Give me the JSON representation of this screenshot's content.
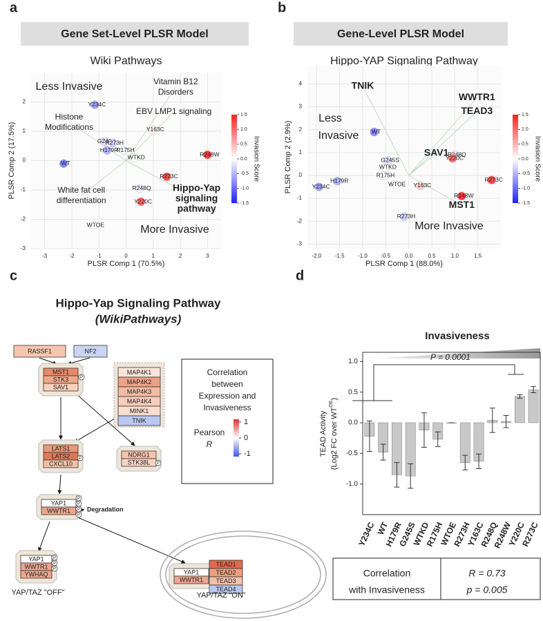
{
  "panel_letters": [
    "a",
    "b",
    "c",
    "d"
  ],
  "chart_data": [
    {
      "type": "scatter",
      "header": "Gene Set-Level PLSR Model",
      "title": "Wiki Pathways",
      "xlabel": "PLSR Comp 1 (70.5%)",
      "ylabel": "PLSR Comp 2 (17.5%)",
      "xlim": [
        -3.5,
        3.5
      ],
      "ylim": [
        -3,
        3
      ],
      "xticks": [
        -3,
        -2,
        -1,
        0,
        1,
        2,
        3
      ],
      "yticks": [
        -3,
        -2,
        -1,
        0,
        1,
        2
      ],
      "grid": true,
      "points": {
        "labels": [
          "Y234C",
          "WT",
          "G245S",
          "R273H",
          "H179R",
          "R175H",
          "WTKD",
          "Y163C",
          "R248W",
          "R273C",
          "R248Q",
          "Y220C",
          "WTOE"
        ],
        "x": [
          -1.15,
          -2.3,
          -0.8,
          -0.5,
          -0.7,
          -0.1,
          0.3,
          1.0,
          3.0,
          1.5,
          0.5,
          0.55,
          -1.2
        ],
        "y": [
          1.9,
          -0.1,
          0.65,
          0.6,
          0.35,
          0.35,
          0.1,
          1.05,
          0.2,
          -0.55,
          -0.95,
          -1.4,
          -2.2
        ],
        "invasion_score": [
          -0.6,
          -0.8,
          -0.2,
          -0.3,
          -0.5,
          -0.05,
          0,
          0.1,
          1.3,
          1.2,
          -0.1,
          1.0,
          0
        ]
      },
      "loadings": [
        {
          "label_lines": [
            "Vitamin B12",
            "Disorders"
          ],
          "x": 1.83,
          "y": 2.5,
          "color": "#2c9a2c",
          "bold": false
        },
        {
          "label_lines": [
            "EBV LMP1 signaling"
          ],
          "x": 1.76,
          "y": 1.66,
          "color": "#2c9a2c",
          "bold": false
        },
        {
          "label_lines": [
            "Histone",
            "Modifications"
          ],
          "x": -2.1,
          "y": 1.3,
          "color": "#2c9a2c",
          "bold": false
        },
        {
          "label_lines": [
            "White fat cell",
            "differentiation"
          ],
          "x": -1.65,
          "y": -1.2,
          "color": "#2c9a2c",
          "bold": false
        },
        {
          "label_lines": [
            "Hippo-Yap",
            "signaling",
            "pathway"
          ],
          "x": 2.6,
          "y": -1.3,
          "color": "#1f8a1f",
          "bold": true
        }
      ],
      "annotations": [
        {
          "text": "Less Invasive",
          "color": "#2a3ddb"
        },
        {
          "text": "More Invasive",
          "color": "#e02020"
        }
      ],
      "colorbar": {
        "label": "Invasion Score",
        "lim": [
          -1.5,
          1.5
        ],
        "colors": [
          "#2020ff",
          "#ffffff",
          "#ff2020"
        ],
        "ticks": [
          1.5,
          {
            "value": 1,
            "label": "1.0"
          },
          0.5,
          {
            "value": 0,
            "label": "0.0"
          },
          -0.5,
          {
            "value": -1,
            "label": "-1.0"
          },
          -1.5
        ]
      }
    },
    {
      "type": "scatter",
      "header": "Gene-Level PLSR Model",
      "title": "Hippo-YAP Signaling Pathway",
      "xlabel": "PLSR Comp 1 (88.0%)",
      "ylabel": "PLSR Comp 2 (2.9%)",
      "xlim": [
        -2.2,
        2.0
      ],
      "ylim": [
        -3.2,
        4.8
      ],
      "xticks": [
        {
          "value": -2,
          "label": "-2.0"
        },
        -1.5,
        {
          "value": -1,
          "label": "-1.0"
        },
        -0.5,
        {
          "value": 0,
          "label": "0.0"
        },
        0.5,
        {
          "value": 1,
          "label": "1.0"
        },
        1.5
      ],
      "yticks": [
        -3,
        -2,
        -1,
        0,
        1,
        2,
        3,
        4
      ],
      "grid": true,
      "points": {
        "labels": [
          "WT",
          "H179R",
          "Y234C",
          "G245S",
          "WTKD",
          "R175H",
          "WTOE",
          "Y163C",
          "R248Q",
          "Y220C",
          "R273C",
          "R248W",
          "R273H"
        ],
        "x": [
          -0.75,
          -1.55,
          -1.95,
          -0.45,
          -0.5,
          -0.55,
          -0.3,
          0.25,
          1.0,
          0.95,
          1.8,
          1.15,
          -0.1
        ],
        "y": [
          1.9,
          -0.25,
          -0.5,
          0.65,
          0.35,
          0.0,
          -0.4,
          -0.45,
          0.9,
          0.75,
          -0.2,
          -0.9,
          -1.8
        ],
        "invasion_score": [
          -0.8,
          -0.5,
          -0.6,
          -0.2,
          0,
          -0.05,
          0,
          0.3,
          -0.1,
          1.0,
          1.2,
          1.3,
          -0.3
        ]
      },
      "loadings": [
        {
          "label_lines": [
            "TNIK"
          ],
          "x": -1.0,
          "y": 3.9,
          "color": "#1f8a1f",
          "bold": true
        },
        {
          "label_lines": [
            "WWTR1"
          ],
          "x": 1.48,
          "y": 3.4,
          "color": "#1f8a1f",
          "bold": true
        },
        {
          "label_lines": [
            "TEAD3"
          ],
          "x": 1.48,
          "y": 2.8,
          "color": "#1f8a1f",
          "bold": true
        },
        {
          "label_lines": [
            "SAV1"
          ],
          "x": 0.6,
          "y": 0.97,
          "color": "#1f8a1f",
          "bold": true
        },
        {
          "label_lines": [
            "MST1"
          ],
          "x": 1.15,
          "y": -1.3,
          "color": "#1f8a1f",
          "bold": true
        }
      ],
      "annotations": [
        {
          "text": "Less",
          "color": "#2a3ddb"
        },
        {
          "text": "Invasive",
          "color": "#2a3ddb"
        },
        {
          "text": "More Invasive",
          "color": "#e02020"
        }
      ],
      "colorbar": {
        "label": "Invasion Score",
        "lim": [
          -1.5,
          1.5
        ],
        "colors": [
          "#2020ff",
          "#ffffff",
          "#ff2020"
        ],
        "ticks": [
          1.5,
          {
            "value": 1,
            "label": "1.0"
          },
          0.5,
          {
            "value": 0,
            "label": "0.0"
          },
          -0.5,
          {
            "value": -1,
            "label": "-1.0"
          },
          -1.5
        ]
      }
    },
    {
      "type": "bar",
      "title": "Invasiveness",
      "ylabel": "TEAD Activity",
      "ylabel2": "(Log2 FC over WT",
      "ylabel2_sup": "OE",
      "ylabel2_end": ")",
      "categories": [
        "Y234C",
        "WT",
        "H179R",
        "G245S",
        "WTKD",
        "R175H",
        "WTOE",
        "R273H",
        "Y163C",
        "R248Q",
        "R248W",
        "Y220C",
        "R273C"
      ],
      "values": [
        -0.22,
        -0.48,
        -0.85,
        -0.87,
        -0.12,
        -0.27,
        0.0,
        -0.65,
        -0.63,
        0.04,
        0.02,
        0.43,
        0.54
      ],
      "errors": [
        0.25,
        0.13,
        0.2,
        0.2,
        0.28,
        0.12,
        0.0,
        0.12,
        0.12,
        0.2,
        0.1,
        0.03,
        0.05
      ],
      "color": "#c8c8c8",
      "ylim": [
        -1.5,
        1.15
      ],
      "yticks": [
        {
          "value": -1,
          "label": "-1.0"
        },
        -0.5,
        {
          "value": 0,
          "label": "0.0"
        },
        0.5,
        {
          "value": 1,
          "label": "1.0"
        }
      ],
      "annotation": "P = 0.0001"
    }
  ],
  "pathway": {
    "title": "Hippo-Yap Signaling Pathway",
    "subtitle": "(WikiPathways)",
    "phospho_marker": "P",
    "groups": [
      {
        "genes": [
          "RASSF1"
        ],
        "colors": [
          "#f7c6ae"
        ]
      },
      {
        "genes": [
          "NF2"
        ],
        "colors": [
          "#c9d5f2"
        ]
      },
      {
        "genes": [
          "MST1",
          "STK3",
          "SAV1"
        ],
        "colors": [
          "#e8876a",
          "#f0a888",
          "#f8d0bc"
        ]
      },
      {
        "genes": [
          "MAP4K1",
          "MAP4K2",
          "MAP4K3",
          "MAP4K4",
          "MINK1",
          "TNIK"
        ],
        "colors": [
          "#f9e4da",
          "#eda185",
          "#f3bba3",
          "#f6cdb9",
          "#f9ddd0",
          "#b9c8f0"
        ]
      },
      {
        "genes": [
          "LATS1",
          "LATS2",
          "CXCL10"
        ],
        "colors": [
          "#e89878",
          "#e07858",
          "#f3c0a8"
        ]
      },
      {
        "genes": [
          "NDRG1",
          "STK38L"
        ],
        "colors": [
          "#f6c4ae",
          "#f6d4c4"
        ]
      },
      {
        "genes": [
          "YAP1",
          "WWTR1"
        ],
        "colors": [
          "#ffffff",
          "#eda590"
        ]
      },
      {
        "genes": [
          "YAP1",
          "WWTR1",
          "YWHAQ"
        ],
        "colors": [
          "#ffffff",
          "#eda590",
          "#eda590"
        ]
      },
      {
        "genes": [
          "YAP1",
          "WWTR1"
        ],
        "colors": [
          "#ffffff",
          "#eda590"
        ]
      },
      {
        "genes": [
          "TEAD1",
          "TEAD2",
          "TEAD3",
          "TEAD4"
        ],
        "colors": [
          "#e06a4e",
          "#ee9d80",
          "#f4c0a9",
          "#b9c8f0"
        ]
      }
    ],
    "labels": [
      "Degradation",
      "YAP/TAZ \"OFF\"",
      "YAP/TAZ “ON”"
    ],
    "legend": {
      "title_lines": [
        "Correlation",
        "between",
        "Expression and",
        "Invasiveness"
      ],
      "scale_label": "Pearson",
      "scale_label2": "R",
      "lim": [
        -1,
        1
      ],
      "ticks": [
        1,
        0,
        -1
      ],
      "colors": [
        "#3b5bdb",
        "#ffffff",
        "#e03030"
      ]
    }
  },
  "correlation_box": {
    "left_lines": [
      "Correlation",
      "with Invasiveness"
    ],
    "right_lines": [
      "R = 0.73",
      "p = 0.005"
    ]
  }
}
